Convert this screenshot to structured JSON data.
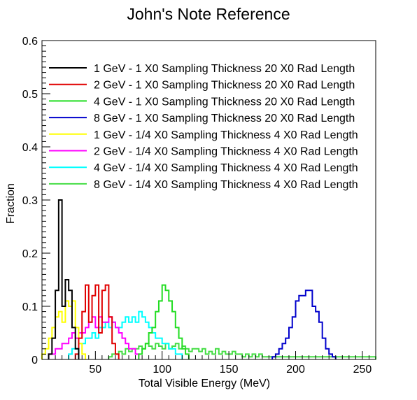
{
  "chart_data": {
    "type": "histogram-step",
    "title": "John's Note Reference",
    "xlabel": "Total Visible Energy (MeV)",
    "ylabel": "Fraction",
    "xlim": [
      10,
      260
    ],
    "ylim": [
      0,
      0.6
    ],
    "bin_width": 2.5,
    "x_ticks": [
      50,
      100,
      150,
      200,
      250
    ],
    "x_tick_labels": [
      "50",
      "100",
      "150",
      "200",
      "250"
    ],
    "y_ticks": [
      0,
      0.1,
      0.2,
      0.3,
      0.4,
      0.5,
      0.6
    ],
    "y_tick_labels": [
      "0",
      "0.1",
      "0.2",
      "0.3",
      "0.4",
      "0.5",
      "0.6"
    ],
    "legend_position": "top-right",
    "grid": false,
    "series": [
      {
        "name": "1 GeV - 1 X0 Sampling Thickness 20 X0 Rad Length",
        "color": "#000000",
        "x_start": 15,
        "values": [
          0.01,
          0.04,
          0.13,
          0.3,
          0.1,
          0.15,
          0.13,
          0.06,
          0.02
        ]
      },
      {
        "name": "2 GeV - 1 X0 Sampling Thickness 20 X0 Rad Length",
        "color": "#e00000",
        "x_start": 35,
        "values": [
          0.01,
          0.04,
          0.09,
          0.14,
          0.07,
          0.12,
          0.14,
          0.05,
          0.13,
          0.14,
          0.08,
          0.03,
          0.01
        ]
      },
      {
        "name": "4 GeV - 1 X0 Sampling Thickness 20 X0 Rad Length",
        "color": "#22dd22",
        "x_start": 82.5,
        "values": [
          0.01,
          0.02,
          0.03,
          0.05,
          0.06,
          0.09,
          0.11,
          0.14,
          0.13,
          0.11,
          0.09,
          0.06,
          0.04,
          0.02,
          0.01
        ]
      },
      {
        "name": "8 GeV - 1 X0 Sampling Thickness 20 X0 Rad Length",
        "color": "#0000cc",
        "x_start": 182.5,
        "values": [
          0.005,
          0.01,
          0.02,
          0.03,
          0.04,
          0.06,
          0.08,
          0.11,
          0.12,
          0.12,
          0.13,
          0.13,
          0.1,
          0.09,
          0.07,
          0.04,
          0.02,
          0.01,
          0.005
        ]
      },
      {
        "name": "1 GeV - 1/4 X0 Sampling Thickness 4 X0 Rad Length",
        "color": "#ffff00",
        "x_start": 10,
        "values": [
          0.01,
          0.02,
          0.04,
          0.06,
          0.08,
          0.09,
          0.07,
          0.11,
          0.1,
          0.11,
          0.06,
          0.03,
          0.01
        ]
      },
      {
        "name": "2 GeV - 1/4 X0 Sampling Thickness 4 X0 Rad Length",
        "color": "#ff00ff",
        "x_start": 15,
        "values": [
          0.01,
          0.01,
          0.02,
          0.02,
          0.03,
          0.03,
          0.04,
          0.05,
          0.04,
          0.05,
          0.05,
          0.06,
          0.07,
          0.08,
          0.06,
          0.08,
          0.07,
          0.07,
          0.08,
          0.07,
          0.06,
          0.05,
          0.04,
          0.03,
          0.02,
          0.02,
          0.01
        ]
      },
      {
        "name": "4 GeV - 1/4 X0 Sampling Thickness 4 X0 Rad Length",
        "color": "#00ffff",
        "x_start": 30,
        "values": [
          0.01,
          0.02,
          0.02,
          0.03,
          0.03,
          0.04,
          0.04,
          0.05,
          0.04,
          0.06,
          0.06,
          0.07,
          0.06,
          0.07,
          0.06,
          0.06,
          0.07,
          0.08,
          0.07,
          0.08,
          0.07,
          0.09,
          0.08,
          0.07,
          0.06,
          0.05,
          0.04,
          0.04,
          0.03,
          0.03,
          0.02,
          0.02,
          0.01,
          0.01
        ]
      },
      {
        "name": "8 GeV - 1/4 X0 Sampling Thickness 4 X0 Rad Length",
        "color": "#44dd44",
        "x_start": 60,
        "values": [
          0.005,
          0.01,
          0.01,
          0.015,
          0.01,
          0.02,
          0.015,
          0.02,
          0.02,
          0.025,
          0.02,
          0.03,
          0.025,
          0.02,
          0.03,
          0.025,
          0.02,
          0.03,
          0.02,
          0.025,
          0.03,
          0.02,
          0.025,
          0.02,
          0.015,
          0.02,
          0.02,
          0.015,
          0.02,
          0.01,
          0.015,
          0.01,
          0.02,
          0.01,
          0.015,
          0.01,
          0.01,
          0.015,
          0.01,
          0.01,
          0.005,
          0.01,
          0.005,
          0.01,
          0.005,
          0.01,
          0.005,
          0.005,
          0.005,
          0.005,
          0.005,
          0.005,
          0.005,
          0.005,
          0.005,
          0.005,
          0.005,
          0.005,
          0.005,
          0.005,
          0.005,
          0.005,
          0.005,
          0.005,
          0.005,
          0.005,
          0.005,
          0.005,
          0.005,
          0.005,
          0.005,
          0.005,
          0.005,
          0.005,
          0.005,
          0.005,
          0.005,
          0.005,
          0.005,
          0.005
        ]
      }
    ]
  }
}
